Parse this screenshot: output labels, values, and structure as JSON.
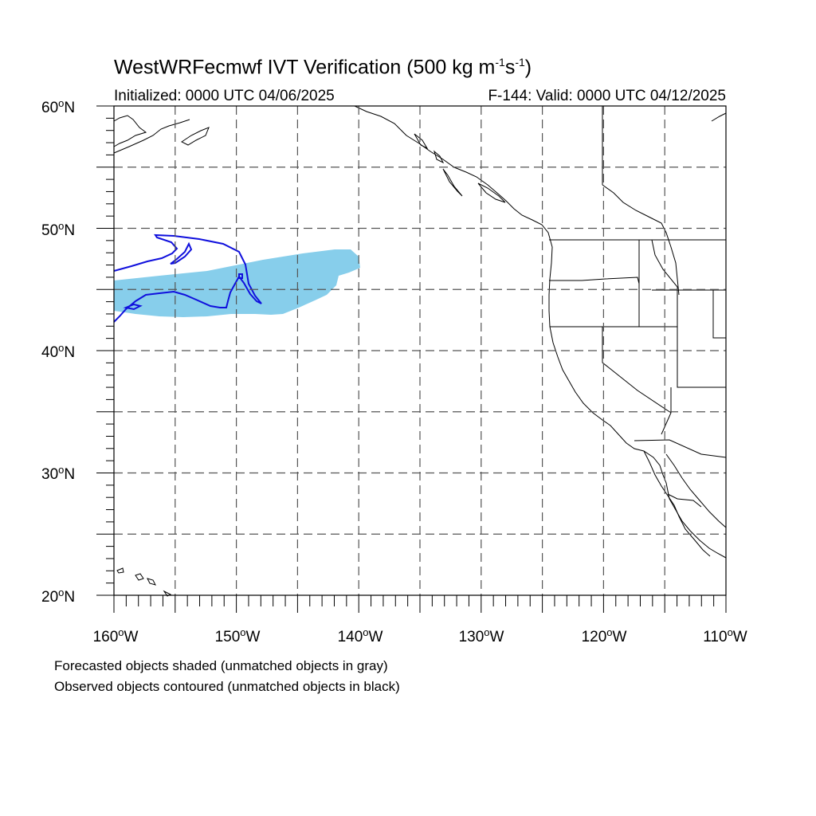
{
  "title": {
    "main": "WestWRFecmwf IVT Verification (500 kg m",
    "exp1": "-1",
    "mid": "s",
    "exp2": "-1",
    "end": ")"
  },
  "subtitle": {
    "initialized": "Initialized: 0000 UTC 04/06/2025",
    "valid": "F-144: Valid: 0000 UTC 04/12/2025"
  },
  "axes": {
    "lat_labels": [
      {
        "num": "60",
        "suffix": "N"
      },
      {
        "num": "50",
        "suffix": "N"
      },
      {
        "num": "40",
        "suffix": "N"
      },
      {
        "num": "30",
        "suffix": "N"
      },
      {
        "num": "20",
        "suffix": "N"
      }
    ],
    "lon_labels": [
      {
        "num": "160",
        "suffix": "W"
      },
      {
        "num": "150",
        "suffix": "W"
      },
      {
        "num": "140",
        "suffix": "W"
      },
      {
        "num": "130",
        "suffix": "W"
      },
      {
        "num": "120",
        "suffix": "W"
      },
      {
        "num": "110",
        "suffix": "W"
      }
    ],
    "degree_symbol": "o",
    "lat_range": [
      20,
      60
    ],
    "lon_range": [
      -160,
      -110
    ],
    "grid": "dashed, every 5 degrees"
  },
  "legend_notes": {
    "forecast": "Forecasted objects shaded (unmatched objects in gray)",
    "observed": "Observed objects contoured (unmatched objects in black)"
  },
  "colors": {
    "forecast_fill": "#87ceeb",
    "observed_contour": "#1010dd",
    "coastline": "#000000",
    "grid": "#555555"
  }
}
